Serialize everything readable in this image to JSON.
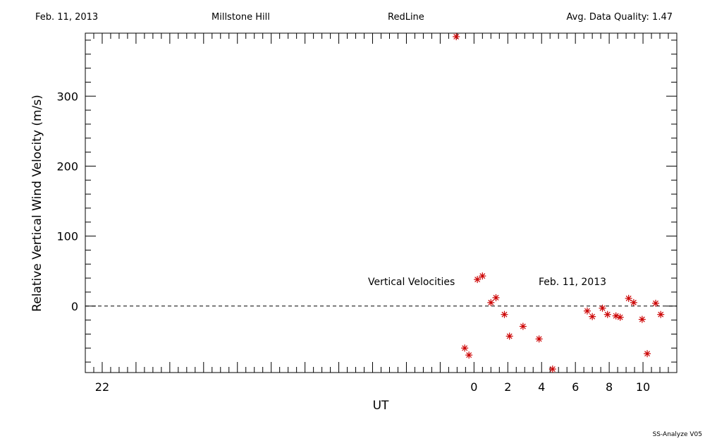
{
  "header": {
    "date": "Feb. 11, 2013",
    "site": "Millstone Hill",
    "line": "RedLine",
    "quality": "Avg. Data Quality: 1.47"
  },
  "footer": "SS-Analyze V05",
  "chart_data": {
    "type": "scatter",
    "xlabel": "UT",
    "ylabel": "Relative Vertical Wind Velocity (m/s)",
    "xlim": [
      -23,
      12
    ],
    "ylim": [
      -95,
      390
    ],
    "xticks": [
      -22,
      0,
      2,
      4,
      6,
      8,
      10
    ],
    "xtick_labels": [
      "22",
      "0",
      "2",
      "4",
      "6",
      "8",
      "10"
    ],
    "yticks": [
      0,
      100,
      200,
      300
    ],
    "ytick_labels": [
      "0",
      "100",
      "200",
      "300"
    ],
    "annotations": [
      "Vertical Velocities",
      "Feb. 11, 2013"
    ],
    "zero_line": "dashed",
    "marker": "asterisk",
    "marker_color": "#cc0000",
    "points": [
      {
        "x": -1.05,
        "y": 385
      },
      {
        "x": -0.55,
        "y": -60
      },
      {
        "x": -0.3,
        "y": -70
      },
      {
        "x": 0.2,
        "y": 38
      },
      {
        "x": 0.5,
        "y": 43
      },
      {
        "x": 1.0,
        "y": 5
      },
      {
        "x": 1.3,
        "y": 12
      },
      {
        "x": 1.8,
        "y": -12
      },
      {
        "x": 2.1,
        "y": -43
      },
      {
        "x": 2.9,
        "y": -29
      },
      {
        "x": 3.85,
        "y": -47
      },
      {
        "x": 4.65,
        "y": -90
      },
      {
        "x": 6.7,
        "y": -7
      },
      {
        "x": 7.0,
        "y": -15
      },
      {
        "x": 7.6,
        "y": -3
      },
      {
        "x": 7.9,
        "y": -12
      },
      {
        "x": 8.4,
        "y": -14
      },
      {
        "x": 8.65,
        "y": -16
      },
      {
        "x": 9.15,
        "y": 11
      },
      {
        "x": 9.45,
        "y": 5
      },
      {
        "x": 9.95,
        "y": -19
      },
      {
        "x": 10.25,
        "y": -68
      },
      {
        "x": 10.75,
        "y": 4
      },
      {
        "x": 11.05,
        "y": -12
      }
    ]
  }
}
